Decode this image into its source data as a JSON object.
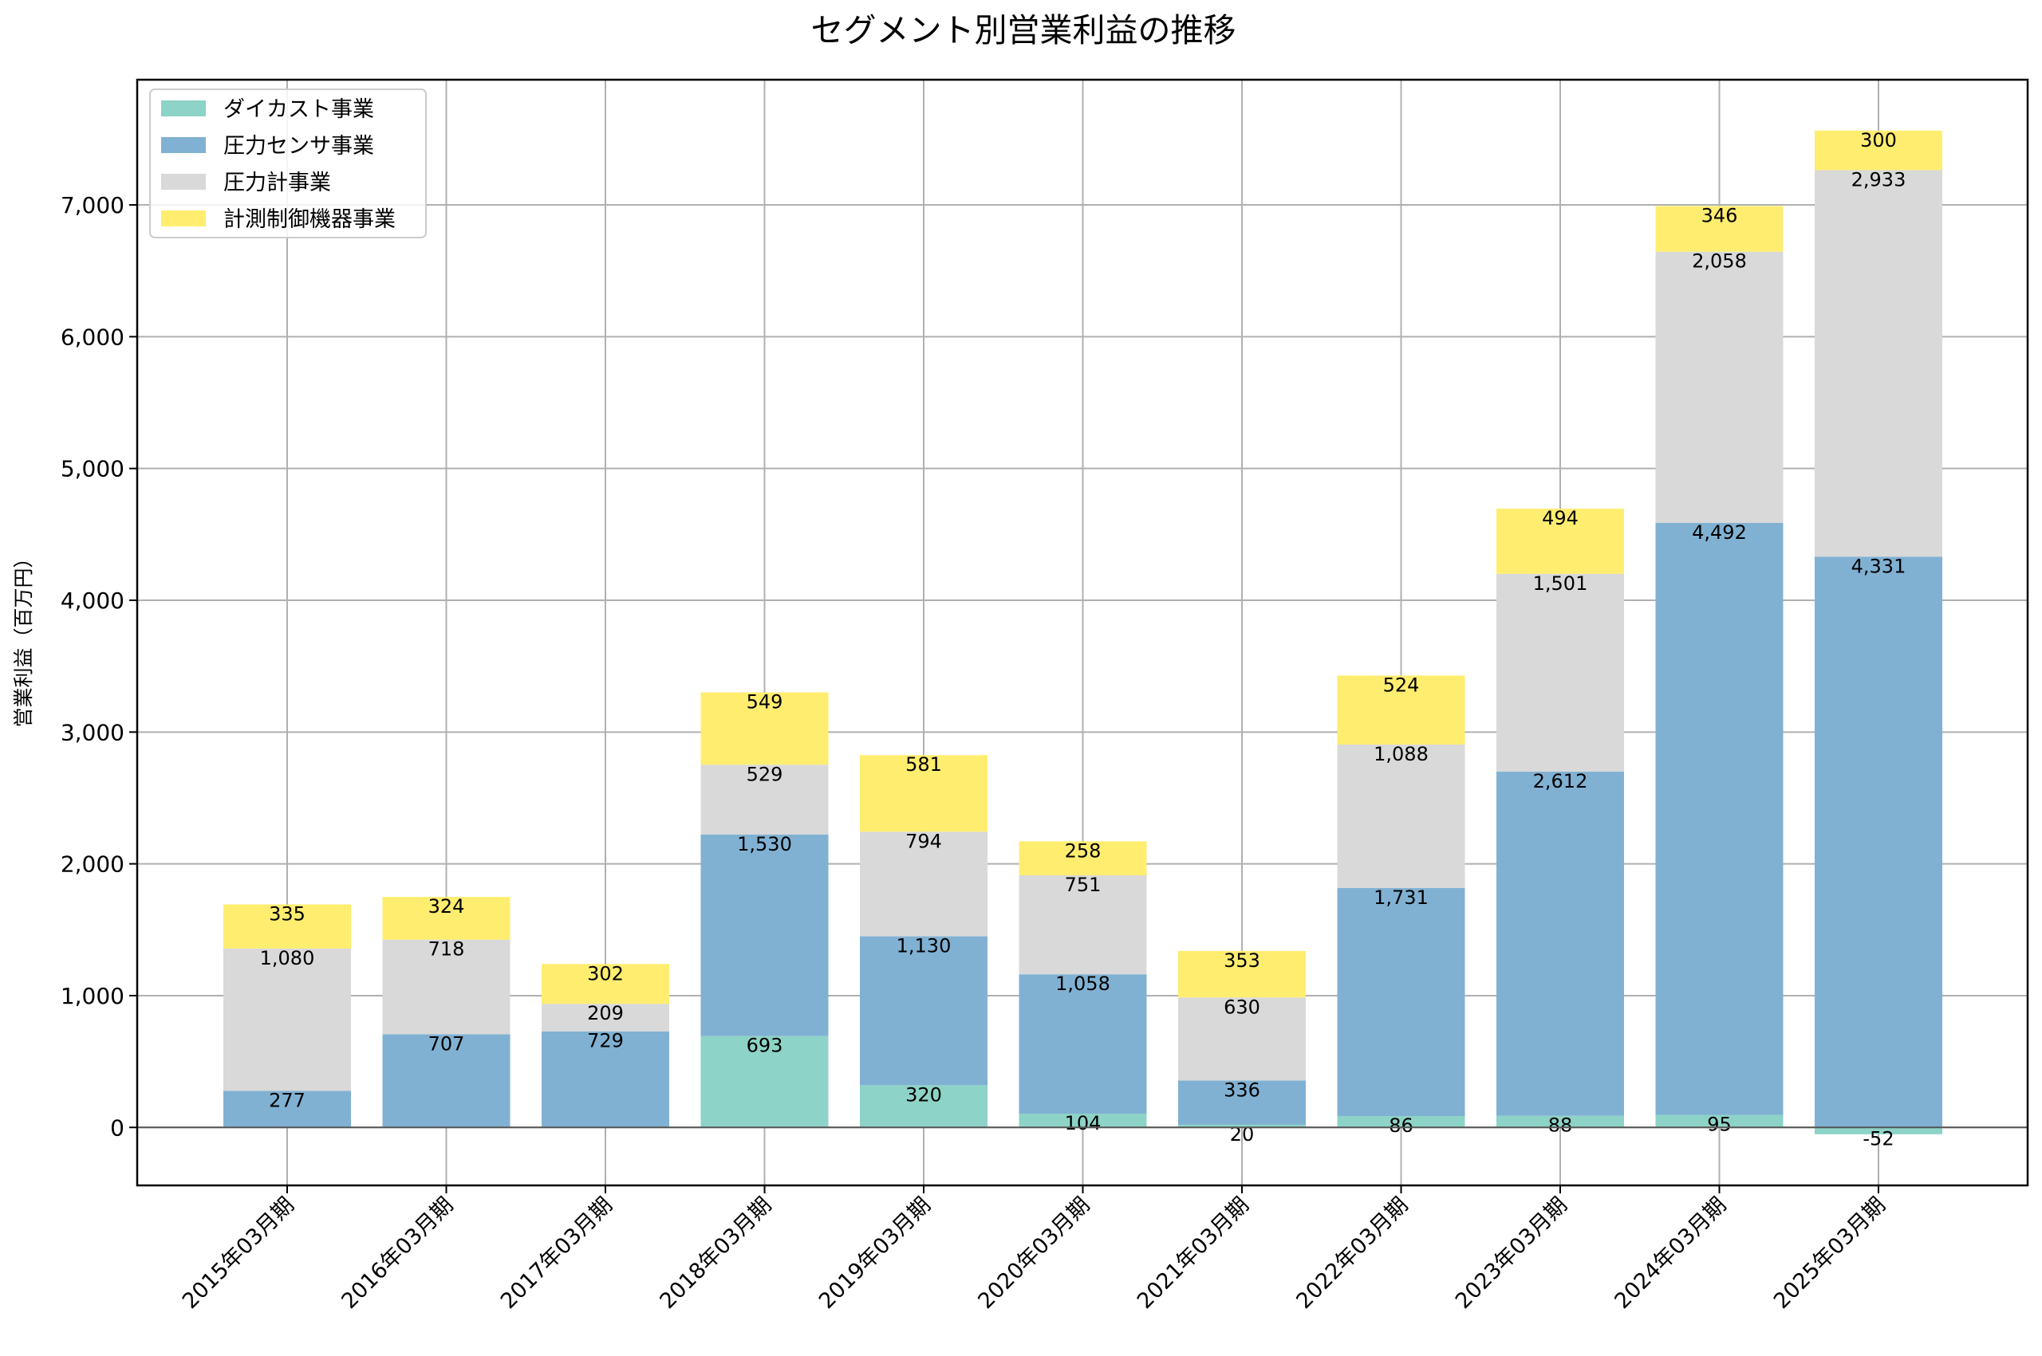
{
  "chart_data": {
    "type": "bar",
    "stacked": true,
    "title": "セグメント別営業利益の推移",
    "xlabel": "",
    "ylabel": "営業利益（百万円）",
    "ylim": [
      -440,
      7950
    ],
    "yticks": [
      0,
      1000,
      2000,
      3000,
      4000,
      5000,
      6000,
      7000
    ],
    "ytick_labels": [
      "0",
      "1,000",
      "2,000",
      "3,000",
      "4,000",
      "5,000",
      "6,000",
      "7,000"
    ],
    "grid": true,
    "legend_position": "top-left",
    "categories": [
      "2015年03月期",
      "2016年03月期",
      "2017年03月期",
      "2018年03月期",
      "2019年03月期",
      "2020年03月期",
      "2021年03月期",
      "2022年03月期",
      "2023年03月期",
      "2024年03月期",
      "2025年03月期"
    ],
    "series": [
      {
        "name": "ダイカスト事業",
        "color": "#8dd3c7",
        "values": [
          0,
          0,
          0,
          693,
          320,
          104,
          20,
          86,
          88,
          95,
          -52
        ]
      },
      {
        "name": "圧力センサ事業",
        "color": "#80b1d3",
        "values": [
          277,
          707,
          729,
          1530,
          1130,
          1058,
          336,
          1731,
          2612,
          4492,
          4331
        ]
      },
      {
        "name": "圧力計事業",
        "color": "#d9d9d9",
        "values": [
          1080,
          718,
          209,
          529,
          794,
          751,
          630,
          1088,
          1501,
          2058,
          2933
        ]
      },
      {
        "name": "計測制御機器事業",
        "color": "#ffed6f",
        "values": [
          335,
          324,
          302,
          549,
          581,
          258,
          353,
          524,
          494,
          346,
          300
        ]
      }
    ],
    "data_labels": [
      [
        null,
        null,
        null,
        "693",
        "320",
        "104",
        "20",
        "86",
        "88",
        "95",
        "-52"
      ],
      [
        "277",
        "707",
        "729",
        "1,530",
        "1,130",
        "1,058",
        "336",
        "1,731",
        "2,612",
        "4,492",
        "4,331"
      ],
      [
        "1,080",
        "718",
        "209",
        "529",
        "794",
        "751",
        "630",
        "1,088",
        "1,501",
        "2,058",
        "2,933"
      ],
      [
        "335",
        "324",
        "302",
        "549",
        "581",
        "258",
        "353",
        "524",
        "494",
        "346",
        "300"
      ]
    ]
  }
}
